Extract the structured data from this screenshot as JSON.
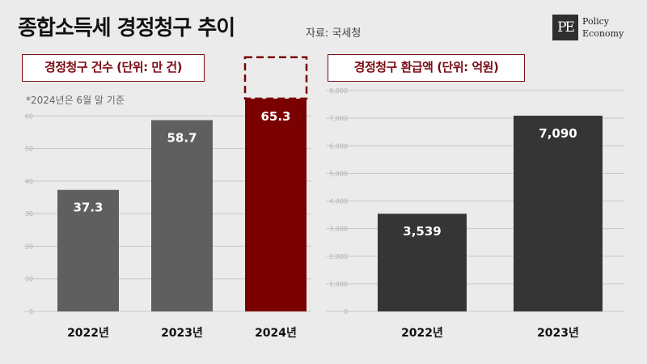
{
  "header": {
    "title": "종합소득세 경정청구 추이",
    "source": "자료: 국세청"
  },
  "logo": {
    "mark": "PE",
    "line1": "Policy",
    "line2": "Economy"
  },
  "colors": {
    "background": "#ebebeb",
    "bar_gray": "#5f5f5f",
    "bar_dark": "#353535",
    "bar_highlight": "#7b0000",
    "box_border": "#7b0b12"
  },
  "chart_data": [
    {
      "type": "bar",
      "title": "경정청구 건수 (단위: 만 건)",
      "note": "*2024년은 6월 말 기준",
      "categories": [
        "2022년",
        "2023년",
        "2024년"
      ],
      "values": [
        37.3,
        58.7,
        65.3
      ],
      "value_labels": [
        "37.3",
        "58.7",
        "65.3"
      ],
      "ylim": [
        0,
        70
      ],
      "yticks": [
        0,
        10,
        20,
        30,
        40,
        50,
        60
      ],
      "ytick_labels": [
        "0",
        "10",
        "20",
        "30",
        "40",
        "50",
        "60"
      ],
      "grid": true,
      "highlight_index": 2,
      "projection_index": 2,
      "projection_top": 78
    },
    {
      "type": "bar",
      "title": "경정청구 환급액 (단위: 억원)",
      "categories": [
        "2022년",
        "2023년"
      ],
      "values": [
        3539,
        7090
      ],
      "value_labels": [
        "3,539",
        "7,090"
      ],
      "ylim": [
        0,
        8000
      ],
      "yticks": [
        0,
        1000,
        2000,
        3000,
        4000,
        5000,
        6000,
        7000,
        8000
      ],
      "ytick_labels": [
        "0",
        "1,000",
        "2,000",
        "3,000",
        "4,000",
        "5,000",
        "6,000",
        "7,000",
        "8,000"
      ],
      "grid": true
    }
  ]
}
